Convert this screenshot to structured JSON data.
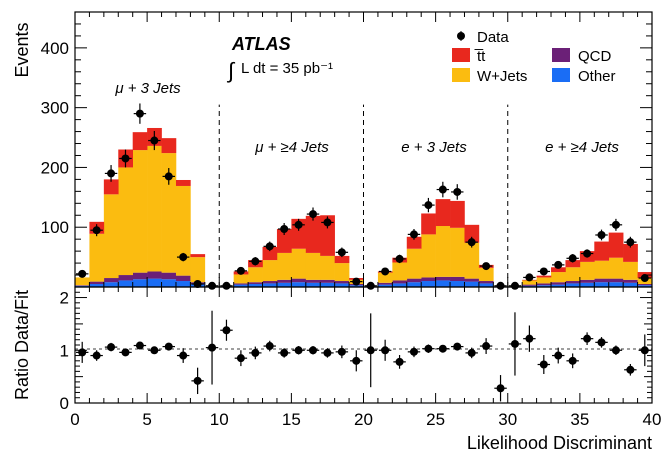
{
  "chart_data": {
    "type": "bar",
    "title": "ATLAS",
    "lumi_text": "L dt = 35 pb⁻¹",
    "xlabel": "Likelihood Discriminant",
    "ylabel_top": "Events",
    "ylabel_bottom": "Ratio Data/Fit",
    "xlim": [
      0,
      40
    ],
    "ylim_top": [
      0,
      460
    ],
    "ylim_bottom": [
      0,
      2.2
    ],
    "x_ticks": [
      "0",
      "5",
      "10",
      "15",
      "20",
      "25",
      "30",
      "35",
      "40"
    ],
    "y_ticks_top": [
      "100",
      "200",
      "300",
      "400"
    ],
    "y_ticks_bottom": [
      "0",
      "1",
      "2"
    ],
    "channels": [
      "μ + 3 Jets",
      "μ + ≥4 Jets",
      "e + 3 Jets",
      "e + ≥4 Jets"
    ],
    "channel_boundaries": [
      10,
      20,
      30
    ],
    "bins": [
      0,
      1,
      2,
      3,
      4,
      5,
      6,
      7,
      8,
      9,
      10,
      11,
      12,
      13,
      14,
      15,
      16,
      17,
      18,
      19,
      20,
      21,
      22,
      23,
      24,
      25,
      26,
      27,
      28,
      29,
      30,
      31,
      32,
      33,
      34,
      35,
      36,
      37,
      38,
      39
    ],
    "legend": {
      "data": "Data",
      "ttbar": "t̅t",
      "qcd": "QCD",
      "wjets": "W+Jets",
      "other": "Other"
    },
    "colors": {
      "ttbar": "#e8281e",
      "wjets": "#fbbc10",
      "qcd": "#6b2077",
      "other": "#1a6df5"
    },
    "series": [
      {
        "name": "Other",
        "values": [
          2,
          5,
          8,
          11,
          13,
          14,
          13,
          10,
          5,
          0,
          0,
          4,
          5,
          6,
          7,
          8,
          7,
          7,
          6,
          3,
          0,
          4,
          6,
          8,
          10,
          11,
          10,
          9,
          6,
          0,
          0,
          2,
          3,
          4,
          6,
          7,
          8,
          8,
          7,
          3
        ]
      },
      {
        "name": "QCD",
        "values": [
          1,
          4,
          7,
          9,
          11,
          12,
          11,
          9,
          3,
          0,
          0,
          2,
          3,
          4,
          5,
          6,
          5,
          5,
          4,
          2,
          0,
          3,
          5,
          6,
          6,
          6,
          7,
          5,
          4,
          0,
          0,
          2,
          3,
          4,
          4,
          5,
          6,
          6,
          5,
          2
        ]
      },
      {
        "name": "W+Jets",
        "values": [
          13,
          80,
          140,
          180,
          205,
          210,
          200,
          150,
          42,
          0,
          0,
          15,
          25,
          35,
          45,
          50,
          45,
          40,
          30,
          7,
          0,
          17,
          30,
          50,
          72,
          85,
          82,
          60,
          22,
          0,
          0,
          7,
          10,
          17,
          23,
          30,
          30,
          35,
          30,
          10
        ]
      },
      {
        "name": "t̅t",
        "values": [
          0,
          20,
          25,
          30,
          30,
          30,
          25,
          10,
          5,
          0,
          0,
          5,
          12,
          22,
          40,
          50,
          62,
          68,
          12,
          3,
          0,
          2,
          8,
          20,
          35,
          45,
          45,
          30,
          5,
          0,
          0,
          1,
          3,
          8,
          12,
          18,
          32,
          42,
          30,
          10
        ]
      }
    ],
    "data": [
      22,
      95,
      190,
      215,
      290,
      245,
      185,
      50,
      5,
      2,
      2,
      27,
      43,
      68,
      97,
      104,
      122,
      108,
      58,
      9,
      2,
      26,
      47,
      88,
      137,
      163,
      159,
      75,
      35,
      2,
      2,
      16,
      26,
      37,
      48,
      56,
      87,
      104,
      75,
      15
    ],
    "data_err": [
      5,
      10,
      14,
      15,
      17,
      16,
      14,
      7,
      2,
      1,
      1,
      5,
      7,
      8,
      10,
      10,
      11,
      10,
      8,
      3,
      1,
      5,
      7,
      9,
      12,
      13,
      13,
      9,
      6,
      1,
      1,
      4,
      5,
      6,
      7,
      7,
      9,
      10,
      9,
      4
    ],
    "ratio": [
      0.96,
      0.9,
      1.06,
      0.96,
      1.09,
      1.0,
      1.07,
      0.9,
      0.42,
      1.05,
      1.38,
      0.85,
      0.95,
      1.08,
      0.95,
      1.0,
      1.0,
      0.95,
      0.97,
      0.8,
      1.0,
      1.0,
      0.78,
      0.97,
      1.03,
      1.03,
      1.07,
      0.95,
      1.08,
      0.28,
      1.12,
      1.22,
      0.73,
      0.9,
      0.8,
      1.22,
      1.15,
      1.0,
      0.63,
      1.0
    ],
    "ratio_err": [
      0.2,
      0.1,
      0.08,
      0.07,
      0.06,
      0.06,
      0.07,
      0.14,
      0.25,
      0.7,
      0.2,
      0.15,
      0.12,
      0.1,
      0.09,
      0.08,
      0.08,
      0.09,
      0.12,
      0.2,
      0.7,
      0.2,
      0.13,
      0.1,
      0.08,
      0.07,
      0.07,
      0.1,
      0.15,
      0.25,
      0.6,
      0.25,
      0.18,
      0.15,
      0.14,
      0.12,
      0.1,
      0.09,
      0.11,
      0.3
    ]
  }
}
